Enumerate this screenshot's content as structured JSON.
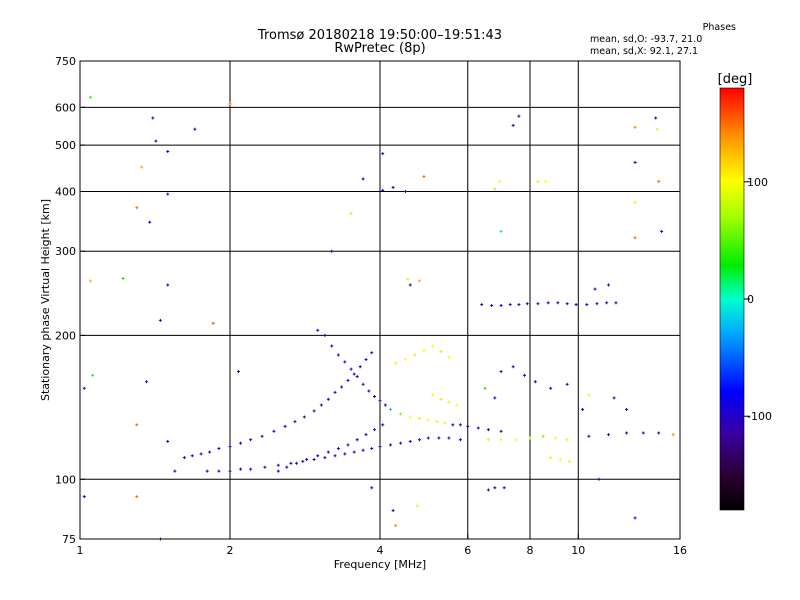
{
  "header": {
    "title_line1": "Tromsø 20180218 19:50:00–19:51:43",
    "title_line2": "RwPretec (8p)",
    "phases_title": "Phases",
    "phases_o": "mean, sd,O: -93.7, 21.0",
    "phases_x": "mean, sd,X:  92.1, 27.1"
  },
  "chart_data": {
    "type": "scatter",
    "title": "Tromsø 20180218 19:50:00–19:51:43",
    "subtitle": "RwPretec (8p)",
    "xlabel": "Frequency [MHz]",
    "ylabel": "Stationary phase Virtual Height [km]",
    "xscale": "log",
    "yscale": "log",
    "xlim": [
      1,
      16
    ],
    "ylim": [
      75,
      750
    ],
    "xticks": [
      1,
      2,
      4,
      6,
      8,
      10,
      16
    ],
    "xtick_labels": [
      "1",
      "2",
      "4",
      "6",
      "8",
      "10",
      "16"
    ],
    "xgrid": [
      2,
      4,
      6,
      8,
      10
    ],
    "yticks": [
      75,
      100,
      200,
      300,
      400,
      500,
      600,
      750
    ],
    "ytick_labels": [
      "75",
      "100",
      "200",
      "300",
      "400",
      "500",
      "600",
      "750"
    ],
    "ygrid": [
      100,
      200,
      300,
      400,
      500,
      600
    ],
    "grid": true,
    "colorbar": {
      "label": "[deg]",
      "min": -180,
      "max": 180,
      "ticks": [
        100,
        0,
        -100
      ],
      "tick_labels": [
        "100",
        "0",
        "-100"
      ]
    },
    "series": [
      {
        "trace": "lower-echo",
        "points": [
          [
            1.62,
            111,
            -95
          ],
          [
            1.68,
            112,
            -90
          ],
          [
            1.75,
            113,
            -100
          ],
          [
            1.82,
            114,
            -110
          ],
          [
            1.9,
            116,
            -100
          ],
          [
            2.0,
            117,
            -95
          ],
          [
            2.1,
            119,
            -85
          ],
          [
            2.2,
            121,
            -100
          ],
          [
            2.32,
            123,
            -110
          ],
          [
            2.45,
            126,
            -95
          ],
          [
            2.58,
            129,
            -90
          ],
          [
            2.7,
            132,
            -100
          ],
          [
            2.82,
            135,
            -120
          ],
          [
            2.95,
            139,
            -110
          ],
          [
            3.05,
            143,
            -100
          ],
          [
            3.15,
            147,
            -90
          ],
          [
            3.25,
            152,
            -110
          ],
          [
            3.35,
            156,
            -100
          ],
          [
            3.45,
            161,
            -95
          ],
          [
            3.55,
            166,
            -90
          ],
          [
            3.65,
            172,
            -105
          ],
          [
            3.75,
            178,
            -100
          ],
          [
            3.85,
            184,
            -110
          ],
          [
            2.5,
            104,
            -100
          ],
          [
            2.6,
            106,
            -95
          ],
          [
            2.72,
            108,
            -105
          ],
          [
            2.85,
            110,
            -100
          ],
          [
            3.0,
            112,
            -90
          ],
          [
            3.15,
            114,
            -95
          ],
          [
            3.3,
            116,
            -105
          ],
          [
            3.45,
            118,
            -100
          ],
          [
            3.6,
            121,
            -95
          ],
          [
            3.75,
            124,
            -110
          ],
          [
            3.9,
            127,
            -100
          ],
          [
            4.05,
            130,
            -120
          ]
        ]
      },
      {
        "trace": "mid-echo",
        "points": [
          [
            1.8,
            104,
            -100
          ],
          [
            1.9,
            104,
            -95
          ],
          [
            2.0,
            104,
            -105
          ],
          [
            2.1,
            105,
            -100
          ],
          [
            2.2,
            105,
            -95
          ],
          [
            2.35,
            106,
            -90
          ],
          [
            2.5,
            107,
            -100
          ],
          [
            2.65,
            108,
            -95
          ],
          [
            2.8,
            109,
            -110
          ],
          [
            2.95,
            110,
            -100
          ],
          [
            3.1,
            111,
            -120
          ],
          [
            3.25,
            112,
            -100
          ],
          [
            3.4,
            113,
            -95
          ],
          [
            3.55,
            114,
            -110
          ],
          [
            3.7,
            115,
            -100
          ],
          [
            3.85,
            116,
            -95
          ],
          [
            4.0,
            117,
            -90
          ],
          [
            4.2,
            118,
            -100
          ],
          [
            4.4,
            119,
            -110
          ],
          [
            4.6,
            120,
            -100
          ],
          [
            4.8,
            121,
            -95
          ],
          [
            5.0,
            122,
            -90
          ],
          [
            5.25,
            122,
            -100
          ],
          [
            5.5,
            122,
            -105
          ],
          [
            5.8,
            121,
            -100
          ]
        ]
      },
      {
        "trace": "upper-echo",
        "points": [
          [
            3.0,
            205,
            -105
          ],
          [
            3.1,
            200,
            -100
          ],
          [
            3.2,
            190,
            -95
          ],
          [
            3.3,
            182,
            -110
          ],
          [
            3.4,
            176,
            -100
          ],
          [
            3.5,
            170,
            -95
          ],
          [
            3.6,
            164,
            -100
          ],
          [
            3.7,
            158,
            -110
          ],
          [
            3.8,
            153,
            -100
          ],
          [
            3.9,
            149,
            -95
          ],
          [
            4.0,
            146,
            -90
          ],
          [
            4.1,
            143,
            -100
          ],
          [
            4.2,
            140,
            -20
          ],
          [
            4.4,
            137,
            60
          ],
          [
            4.6,
            135,
            100
          ],
          [
            4.8,
            134,
            110
          ],
          [
            5.0,
            133,
            100
          ],
          [
            5.2,
            132,
            90
          ],
          [
            5.4,
            131,
            110
          ],
          [
            5.6,
            130,
            -90
          ],
          [
            5.8,
            130,
            -100
          ],
          [
            6.0,
            129,
            -110
          ],
          [
            6.3,
            128,
            -100
          ],
          [
            6.6,
            127,
            -95
          ],
          [
            7.0,
            126,
            -110
          ]
        ]
      },
      {
        "trace": "x-mode",
        "points": [
          [
            4.3,
            175,
            90
          ],
          [
            4.5,
            178,
            100
          ],
          [
            4.7,
            182,
            110
          ],
          [
            4.9,
            186,
            95
          ],
          [
            5.1,
            190,
            100
          ],
          [
            5.3,
            185,
            110
          ],
          [
            5.5,
            180,
            105
          ],
          [
            5.1,
            150,
            100
          ],
          [
            5.3,
            147,
            110
          ],
          [
            5.5,
            145,
            90
          ],
          [
            5.7,
            143,
            100
          ],
          [
            6.6,
            121,
            110
          ],
          [
            7.0,
            121,
            95
          ],
          [
            7.5,
            121,
            100
          ],
          [
            8.0,
            122,
            80
          ],
          [
            8.5,
            123,
            60
          ],
          [
            9.0,
            122,
            100
          ],
          [
            9.5,
            121,
            110
          ],
          [
            10.5,
            123,
            -100
          ],
          [
            11.5,
            124,
            -95
          ],
          [
            12.5,
            125,
            -90
          ],
          [
            13.5,
            125,
            -100
          ],
          [
            14.5,
            125,
            -110
          ],
          [
            15.5,
            124,
            140
          ],
          [
            8.8,
            111,
            110
          ],
          [
            9.2,
            110,
            100
          ],
          [
            9.6,
            109,
            95
          ]
        ]
      },
      {
        "trace": "f-layer",
        "points": [
          [
            6.4,
            232,
            -120
          ],
          [
            6.7,
            231,
            -100
          ],
          [
            7.0,
            231,
            -95
          ],
          [
            7.3,
            232,
            -110
          ],
          [
            7.6,
            232,
            -100
          ],
          [
            7.9,
            233,
            -105
          ],
          [
            8.3,
            233,
            -100
          ],
          [
            8.7,
            234,
            -95
          ],
          [
            9.1,
            234,
            -110
          ],
          [
            9.5,
            233,
            -100
          ],
          [
            9.9,
            232,
            -95
          ],
          [
            10.4,
            232,
            -90
          ],
          [
            10.9,
            233,
            -100
          ],
          [
            11.4,
            234,
            -110
          ],
          [
            11.9,
            234,
            -100
          ]
        ]
      },
      {
        "trace": "scattered",
        "points": [
          [
            1.05,
            630,
            40
          ],
          [
            1.33,
            450,
            130
          ],
          [
            1.4,
            570,
            -110
          ],
          [
            1.42,
            510,
            -120
          ],
          [
            1.5,
            485,
            -100
          ],
          [
            1.3,
            370,
            150
          ],
          [
            1.38,
            345,
            -90
          ],
          [
            1.5,
            395,
            -110
          ],
          [
            1.05,
            260,
            130
          ],
          [
            1.22,
            263,
            30
          ],
          [
            1.45,
            215,
            -100
          ],
          [
            1.5,
            255,
            -100
          ],
          [
            1.02,
            155,
            -120
          ],
          [
            1.06,
            165,
            20
          ],
          [
            1.36,
            160,
            -105
          ],
          [
            1.3,
            130,
            150
          ],
          [
            1.5,
            120,
            -100
          ],
          [
            1.55,
            104,
            -90
          ],
          [
            1.02,
            92,
            -95
          ],
          [
            1.3,
            92,
            150
          ],
          [
            1.45,
            75,
            -100
          ],
          [
            1.7,
            540,
            -110
          ],
          [
            2.0,
            610,
            150
          ],
          [
            1.85,
            212,
            160
          ],
          [
            2.08,
            168,
            -100
          ],
          [
            3.2,
            300,
            -100
          ],
          [
            3.5,
            360,
            80
          ],
          [
            3.7,
            425,
            -95
          ],
          [
            4.05,
            480,
            -110
          ],
          [
            4.05,
            402,
            -100
          ],
          [
            4.25,
            408,
            -90
          ],
          [
            4.5,
            400,
            -110
          ],
          [
            4.9,
            430,
            150
          ],
          [
            4.55,
            262,
            110
          ],
          [
            4.6,
            255,
            -100
          ],
          [
            4.8,
            260,
            130
          ],
          [
            3.85,
            96,
            -90
          ],
          [
            4.25,
            86,
            -100
          ],
          [
            4.3,
            80,
            140
          ],
          [
            4.75,
            88,
            110
          ],
          [
            6.6,
            95,
            -110
          ],
          [
            6.8,
            96,
            -100
          ],
          [
            7.1,
            96,
            -95
          ],
          [
            6.8,
            405,
            80
          ],
          [
            6.95,
            420,
            90
          ],
          [
            7.0,
            330,
            10
          ],
          [
            7.4,
            550,
            -100
          ],
          [
            7.6,
            575,
            -110
          ],
          [
            8.3,
            420,
            110
          ],
          [
            8.6,
            420,
            100
          ],
          [
            10.8,
            250,
            -110
          ],
          [
            11.5,
            255,
            -100
          ],
          [
            13.0,
            545,
            140
          ],
          [
            14.3,
            570,
            -100
          ],
          [
            14.4,
            540,
            110
          ],
          [
            13.0,
            380,
            110
          ],
          [
            13.0,
            460,
            -110
          ],
          [
            13.0,
            320,
            150
          ],
          [
            14.5,
            420,
            150
          ],
          [
            14.7,
            330,
            -100
          ],
          [
            13.0,
            83,
            -90
          ],
          [
            11.0,
            100,
            -105
          ],
          [
            10.2,
            140,
            -100
          ],
          [
            8.2,
            160,
            -110
          ],
          [
            8.8,
            155,
            -95
          ],
          [
            9.5,
            158,
            -100
          ],
          [
            10.5,
            150,
            90
          ],
          [
            11.8,
            148,
            -110
          ],
          [
            12.5,
            140,
            -100
          ],
          [
            7.0,
            168,
            -95
          ],
          [
            7.4,
            172,
            -110
          ],
          [
            7.8,
            165,
            -100
          ],
          [
            6.5,
            155,
            30
          ],
          [
            6.8,
            148,
            -105
          ]
        ]
      }
    ]
  }
}
